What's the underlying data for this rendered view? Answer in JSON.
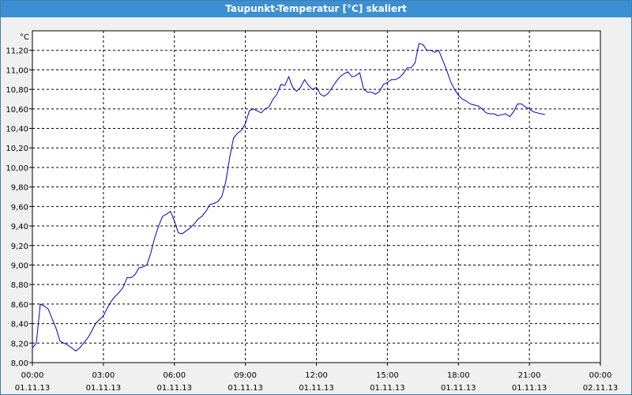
{
  "window": {
    "title": "Taupunkt-Temperatur [°C] skaliert"
  },
  "colors": {
    "titlebar": "#3c8fd0",
    "line": "#0000cc",
    "grid": "#000000",
    "plot_bg": "#ffffff"
  },
  "chart_data": {
    "type": "line",
    "ylabel": "°C",
    "xlim": [
      "01.11.13 00:00",
      "02.11.13 00:00"
    ],
    "ylim": [
      8.0,
      11.4
    ],
    "grid": true,
    "y_ticks": [
      "8,00",
      "8,20",
      "8,40",
      "8,60",
      "8,80",
      "9,00",
      "9,20",
      "9,40",
      "9,60",
      "9,80",
      "10,00",
      "10,20",
      "10,40",
      "10,60",
      "10,80",
      "11,00",
      "11,20"
    ],
    "x_ticks": [
      {
        "time": "00:00",
        "date": "01.11.13"
      },
      {
        "time": "03:00",
        "date": "01.11.13"
      },
      {
        "time": "06:00",
        "date": "01.11.13"
      },
      {
        "time": "09:00",
        "date": "01.11.13"
      },
      {
        "time": "12:00",
        "date": "01.11.13"
      },
      {
        "time": "15:00",
        "date": "01.11.13"
      },
      {
        "time": "18:00",
        "date": "01.11.13"
      },
      {
        "time": "21:00",
        "date": "01.11.13"
      },
      {
        "time": "00:00",
        "date": "02.11.13"
      }
    ],
    "series": [
      {
        "points": [
          [
            "00:00",
            8.15
          ],
          [
            "00:10",
            8.2
          ],
          [
            "00:20",
            8.6
          ],
          [
            "00:30",
            8.58
          ],
          [
            "00:40",
            8.55
          ],
          [
            "00:50",
            8.45
          ],
          [
            "01:00",
            8.35
          ],
          [
            "01:10",
            8.22
          ],
          [
            "01:20",
            8.2
          ],
          [
            "01:30",
            8.18
          ],
          [
            "01:40",
            8.15
          ],
          [
            "01:50",
            8.12
          ],
          [
            "02:00",
            8.15
          ],
          [
            "02:10",
            8.2
          ],
          [
            "02:20",
            8.25
          ],
          [
            "02:30",
            8.32
          ],
          [
            "02:40",
            8.4
          ],
          [
            "02:50",
            8.44
          ],
          [
            "03:00",
            8.48
          ],
          [
            "03:10",
            8.56
          ],
          [
            "03:20",
            8.63
          ],
          [
            "03:30",
            8.68
          ],
          [
            "03:40",
            8.72
          ],
          [
            "03:50",
            8.77
          ],
          [
            "04:00",
            8.87
          ],
          [
            "04:10",
            8.87
          ],
          [
            "04:20",
            8.9
          ],
          [
            "04:30",
            8.97
          ],
          [
            "04:40",
            8.98
          ],
          [
            "04:50",
            9.0
          ],
          [
            "05:00",
            9.12
          ],
          [
            "05:10",
            9.28
          ],
          [
            "05:20",
            9.4
          ],
          [
            "05:30",
            9.5
          ],
          [
            "05:40",
            9.52
          ],
          [
            "05:50",
            9.55
          ],
          [
            "06:00",
            9.45
          ],
          [
            "06:10",
            9.33
          ],
          [
            "06:20",
            9.32
          ],
          [
            "06:30",
            9.35
          ],
          [
            "06:40",
            9.38
          ],
          [
            "06:50",
            9.42
          ],
          [
            "07:00",
            9.47
          ],
          [
            "07:10",
            9.5
          ],
          [
            "07:20",
            9.55
          ],
          [
            "07:30",
            9.62
          ],
          [
            "07:40",
            9.63
          ],
          [
            "07:50",
            9.65
          ],
          [
            "08:00",
            9.7
          ],
          [
            "08:10",
            9.85
          ],
          [
            "08:20",
            10.1
          ],
          [
            "08:30",
            10.3
          ],
          [
            "08:40",
            10.35
          ],
          [
            "08:50",
            10.38
          ],
          [
            "09:00",
            10.45
          ],
          [
            "09:10",
            10.58
          ],
          [
            "09:20",
            10.6
          ],
          [
            "09:30",
            10.58
          ],
          [
            "09:40",
            10.56
          ],
          [
            "09:50",
            10.6
          ],
          [
            "10:00",
            10.62
          ],
          [
            "10:10",
            10.7
          ],
          [
            "10:20",
            10.75
          ],
          [
            "10:30",
            10.85
          ],
          [
            "10:40",
            10.84
          ],
          [
            "10:50",
            10.93
          ],
          [
            "11:00",
            10.82
          ],
          [
            "11:10",
            10.78
          ],
          [
            "11:20",
            10.82
          ],
          [
            "11:30",
            10.9
          ],
          [
            "11:40",
            10.84
          ],
          [
            "11:50",
            10.8
          ],
          [
            "12:00",
            10.82
          ],
          [
            "12:10",
            10.75
          ],
          [
            "12:20",
            10.73
          ],
          [
            "12:30",
            10.76
          ],
          [
            "12:40",
            10.82
          ],
          [
            "12:50",
            10.88
          ],
          [
            "13:00",
            10.93
          ],
          [
            "13:10",
            10.96
          ],
          [
            "13:20",
            10.98
          ],
          [
            "13:30",
            10.93
          ],
          [
            "13:40",
            10.94
          ],
          [
            "13:50",
            10.97
          ],
          [
            "14:00",
            10.8
          ],
          [
            "14:10",
            10.77
          ],
          [
            "14:20",
            10.77
          ],
          [
            "14:30",
            10.75
          ],
          [
            "14:40",
            10.78
          ],
          [
            "14:50",
            10.85
          ],
          [
            "15:00",
            10.87
          ],
          [
            "15:10",
            10.9
          ],
          [
            "15:20",
            10.9
          ],
          [
            "15:30",
            10.92
          ],
          [
            "15:40",
            10.96
          ],
          [
            "15:50",
            11.02
          ],
          [
            "16:00",
            11.02
          ],
          [
            "16:10",
            11.07
          ],
          [
            "16:20",
            11.27
          ],
          [
            "16:30",
            11.26
          ],
          [
            "16:40",
            11.2
          ],
          [
            "16:50",
            11.2
          ],
          [
            "17:00",
            11.18
          ],
          [
            "17:10",
            11.2
          ],
          [
            "17:20",
            11.1
          ],
          [
            "17:30",
            11.0
          ],
          [
            "17:40",
            10.88
          ],
          [
            "17:50",
            10.8
          ],
          [
            "18:00",
            10.74
          ],
          [
            "18:10",
            10.7
          ],
          [
            "18:20",
            10.68
          ],
          [
            "18:30",
            10.65
          ],
          [
            "18:40",
            10.64
          ],
          [
            "18:50",
            10.63
          ],
          [
            "19:00",
            10.6
          ],
          [
            "19:10",
            10.56
          ],
          [
            "19:20",
            10.55
          ],
          [
            "19:30",
            10.55
          ],
          [
            "19:40",
            10.53
          ],
          [
            "19:50",
            10.54
          ],
          [
            "20:00",
            10.55
          ],
          [
            "20:10",
            10.52
          ],
          [
            "20:20",
            10.57
          ],
          [
            "20:30",
            10.65
          ],
          [
            "20:40",
            10.65
          ],
          [
            "20:50",
            10.62
          ],
          [
            "21:00",
            10.6
          ],
          [
            "21:10",
            10.57
          ],
          [
            "21:20",
            10.56
          ],
          [
            "21:30",
            10.55
          ],
          [
            "21:40",
            10.54
          ]
        ]
      }
    ]
  }
}
